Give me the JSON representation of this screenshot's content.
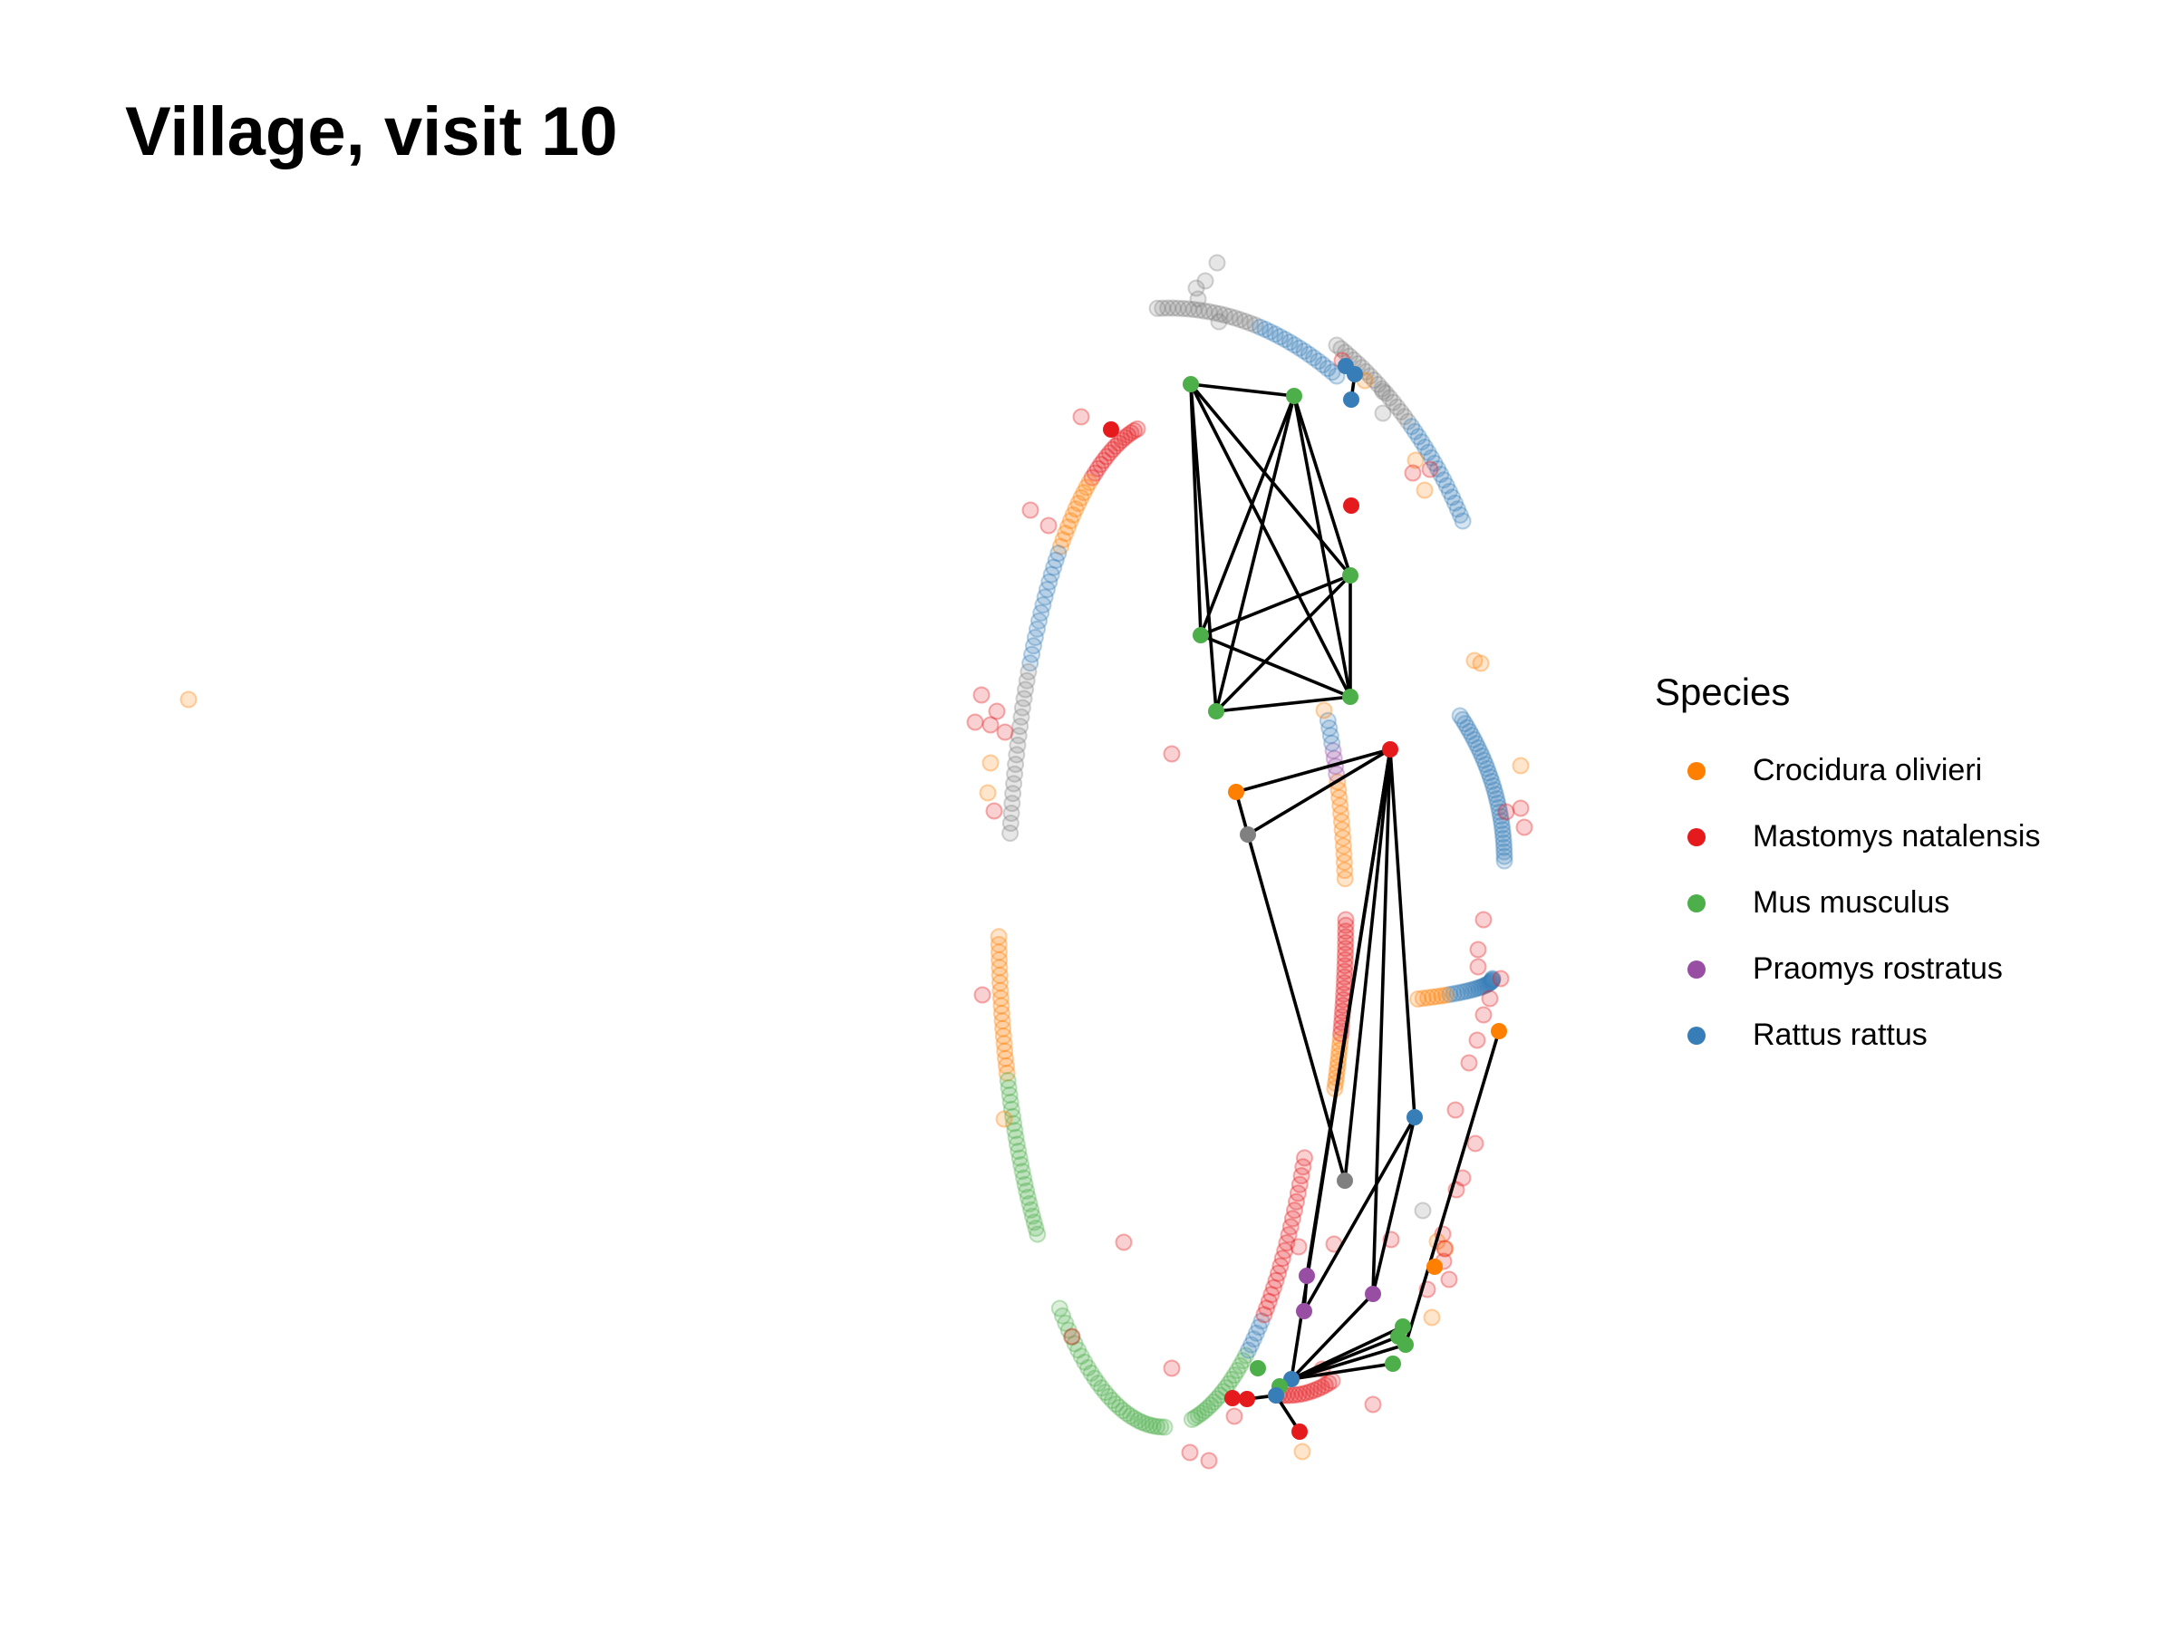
{
  "title": "Village, visit 10",
  "legend": {
    "title": "Species",
    "items": [
      {
        "label": "Crocidura olivieri",
        "color": "#FF7F00"
      },
      {
        "label": "Mastomys natalensis",
        "color": "#E41A1C"
      },
      {
        "label": "Mus musculus",
        "color": "#4DAF4A"
      },
      {
        "label": "Praomys rostratus",
        "color": "#984EA3"
      },
      {
        "label": "Rattus rattus",
        "color": "#377EB8"
      }
    ]
  },
  "colors": {
    "unknown_node": "#808080",
    "edge": "#000000"
  }
}
